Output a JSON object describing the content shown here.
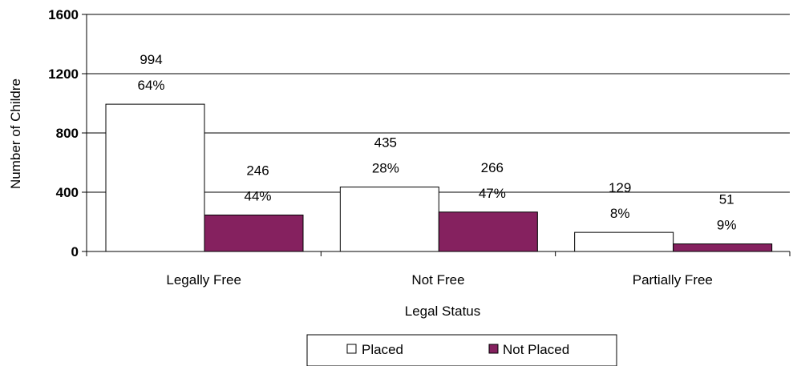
{
  "chart_data": {
    "type": "bar",
    "title": "",
    "xlabel": "Legal Status",
    "ylabel": "Number of Childre",
    "categories": [
      "Legally Free",
      "Not Free",
      "Partially Free"
    ],
    "series": [
      {
        "name": "Placed",
        "values": [
          994,
          435,
          129
        ],
        "percent_labels": [
          "64%",
          "28%",
          "8%"
        ],
        "color": "#ffffff"
      },
      {
        "name": "Not Placed",
        "values": [
          246,
          266,
          51
        ],
        "percent_labels": [
          "44%",
          "47%",
          "9%"
        ],
        "color": "#85215f"
      }
    ],
    "ylim": [
      0,
      1600
    ],
    "yticks": [
      0,
      400,
      800,
      1200,
      1600
    ],
    "grid": true,
    "legend_position": "bottom"
  },
  "colors": {
    "placed": "#ffffff",
    "not_placed": "#85215f",
    "outline": "#000000"
  }
}
